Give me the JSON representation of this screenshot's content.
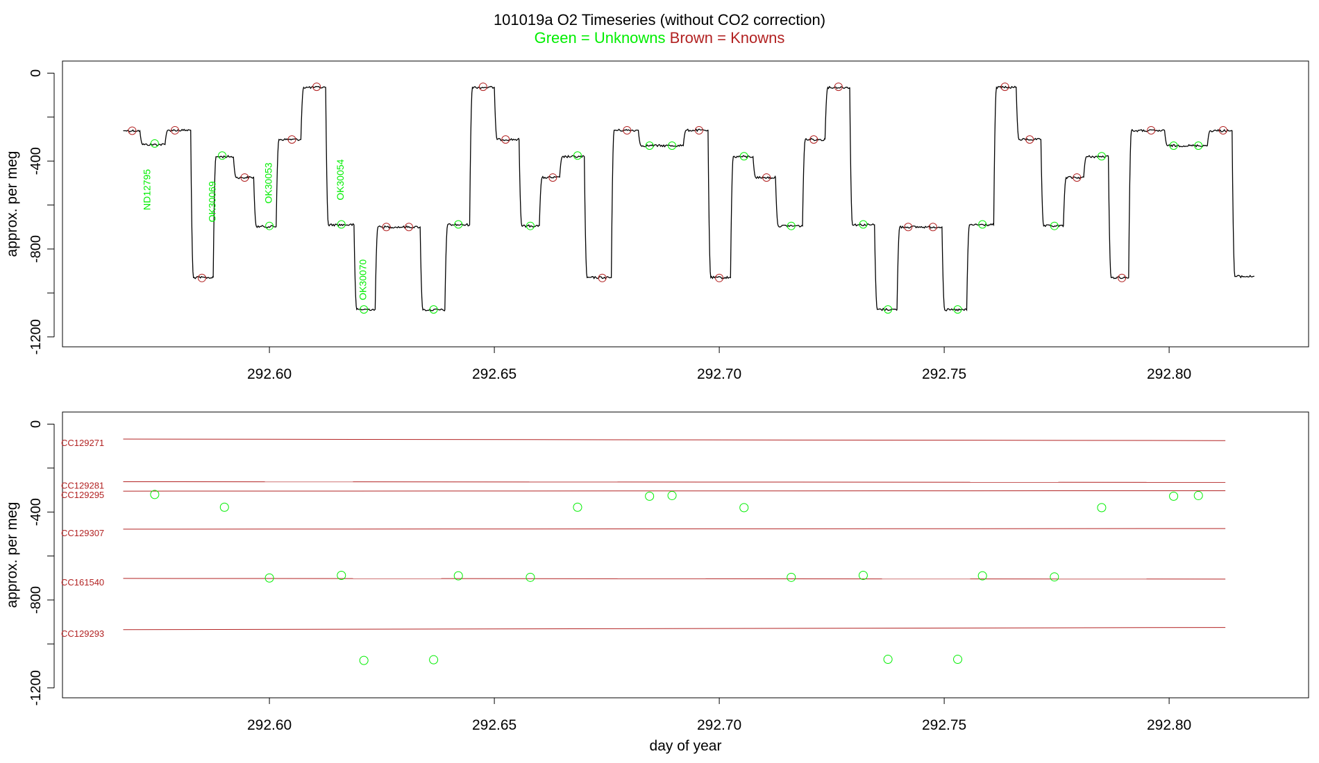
{
  "title": "101019a   O2 Timeseries (without CO2 correction)",
  "subtitle_unknowns": "Green = Unknowns",
  "subtitle_knowns": "Brown = Knowns",
  "colors": {
    "unknowns": "#00ee00",
    "knowns": "#b22222",
    "trace": "#000000",
    "ref_lines": "#b22222",
    "axis": "#000000"
  },
  "chart_data": [
    {
      "type": "line",
      "panel": "top",
      "xlabel": "",
      "ylabel": "approx. per meg",
      "xlim": [
        292.554,
        292.831
      ],
      "ylim": [
        -1245,
        55
      ],
      "xticks": [
        292.6,
        292.65,
        292.7,
        292.75,
        292.8
      ],
      "xtick_labels": [
        "292.60",
        "292.65",
        "292.70",
        "292.75",
        "292.80"
      ],
      "yticks": [
        0,
        -400,
        -800,
        -1200
      ],
      "ytick_labels": [
        "0",
        "-400",
        "-800",
        "-1200"
      ],
      "trace_segments": [
        {
          "x0": 292.5675,
          "x1": 292.5712,
          "y": -262
        },
        {
          "x0": 292.5712,
          "x1": 292.5768,
          "y": -325
        },
        {
          "x0": 292.5768,
          "x1": 292.5825,
          "y": -260
        },
        {
          "x0": 292.5825,
          "x1": 292.5875,
          "y": -930
        },
        {
          "x0": 292.5875,
          "x1": 292.592,
          "y": -380
        },
        {
          "x0": 292.592,
          "x1": 292.5965,
          "y": -475
        },
        {
          "x0": 292.5965,
          "x1": 292.6015,
          "y": -698
        },
        {
          "x0": 292.6015,
          "x1": 292.607,
          "y": -302
        },
        {
          "x0": 292.607,
          "x1": 292.6125,
          "y": -65
        },
        {
          "x0": 292.6125,
          "x1": 292.6188,
          "y": -690
        },
        {
          "x0": 292.6188,
          "x1": 292.6235,
          "y": -1075
        },
        {
          "x0": 292.6235,
          "x1": 292.6335,
          "y": -700
        },
        {
          "x0": 292.6335,
          "x1": 292.639,
          "y": -1077
        },
        {
          "x0": 292.639,
          "x1": 292.6445,
          "y": -690
        },
        {
          "x0": 292.6445,
          "x1": 292.65,
          "y": -65
        },
        {
          "x0": 292.65,
          "x1": 292.6555,
          "y": -302
        },
        {
          "x0": 292.6555,
          "x1": 292.66,
          "y": -695
        },
        {
          "x0": 292.66,
          "x1": 292.6645,
          "y": -475
        },
        {
          "x0": 292.6645,
          "x1": 292.67,
          "y": -380
        },
        {
          "x0": 292.67,
          "x1": 292.676,
          "y": -930
        },
        {
          "x0": 292.676,
          "x1": 292.682,
          "y": -260
        },
        {
          "x0": 292.682,
          "x1": 292.692,
          "y": -330
        },
        {
          "x0": 292.692,
          "x1": 292.6975,
          "y": -260
        },
        {
          "x0": 292.6975,
          "x1": 292.7025,
          "y": -930
        },
        {
          "x0": 292.7025,
          "x1": 292.7075,
          "y": -380
        },
        {
          "x0": 292.7075,
          "x1": 292.7125,
          "y": -475
        },
        {
          "x0": 292.7125,
          "x1": 292.7185,
          "y": -695
        },
        {
          "x0": 292.7185,
          "x1": 292.7235,
          "y": -302
        },
        {
          "x0": 292.7235,
          "x1": 292.729,
          "y": -65
        },
        {
          "x0": 292.729,
          "x1": 292.7345,
          "y": -690
        },
        {
          "x0": 292.7345,
          "x1": 292.7395,
          "y": -1075
        },
        {
          "x0": 292.7395,
          "x1": 292.7495,
          "y": -700
        },
        {
          "x0": 292.7495,
          "x1": 292.755,
          "y": -1077
        },
        {
          "x0": 292.755,
          "x1": 292.761,
          "y": -690
        },
        {
          "x0": 292.761,
          "x1": 292.766,
          "y": -65
        },
        {
          "x0": 292.766,
          "x1": 292.7715,
          "y": -302
        },
        {
          "x0": 292.7715,
          "x1": 292.7765,
          "y": -695
        },
        {
          "x0": 292.7765,
          "x1": 292.781,
          "y": -475
        },
        {
          "x0": 292.781,
          "x1": 292.7865,
          "y": -380
        },
        {
          "x0": 292.7865,
          "x1": 292.791,
          "y": -930
        },
        {
          "x0": 292.791,
          "x1": 292.799,
          "y": -262
        },
        {
          "x0": 292.799,
          "x1": 292.8085,
          "y": -330
        },
        {
          "x0": 292.8085,
          "x1": 292.814,
          "y": -262
        },
        {
          "x0": 292.814,
          "x1": 292.819,
          "y": -925
        }
      ],
      "unknown_points": [
        {
          "x": 292.5745,
          "y": -320
        },
        {
          "x": 292.5895,
          "y": -375
        },
        {
          "x": 292.6,
          "y": -695
        },
        {
          "x": 292.616,
          "y": -688
        },
        {
          "x": 292.621,
          "y": -1075
        },
        {
          "x": 292.6365,
          "y": -1075
        },
        {
          "x": 292.642,
          "y": -688
        },
        {
          "x": 292.658,
          "y": -695
        },
        {
          "x": 292.6685,
          "y": -375
        },
        {
          "x": 292.6845,
          "y": -330
        },
        {
          "x": 292.6895,
          "y": -330
        },
        {
          "x": 292.7055,
          "y": -378
        },
        {
          "x": 292.716,
          "y": -695
        },
        {
          "x": 292.732,
          "y": -688
        },
        {
          "x": 292.7375,
          "y": -1075
        },
        {
          "x": 292.753,
          "y": -1075
        },
        {
          "x": 292.7585,
          "y": -688
        },
        {
          "x": 292.7745,
          "y": -695
        },
        {
          "x": 292.785,
          "y": -378
        },
        {
          "x": 292.801,
          "y": -330
        },
        {
          "x": 292.8065,
          "y": -330
        }
      ],
      "known_points": [
        {
          "x": 292.5695,
          "y": -262
        },
        {
          "x": 292.579,
          "y": -260
        },
        {
          "x": 292.585,
          "y": -932
        },
        {
          "x": 292.5945,
          "y": -475
        },
        {
          "x": 292.605,
          "y": -302
        },
        {
          "x": 292.6105,
          "y": -62
        },
        {
          "x": 292.626,
          "y": -700
        },
        {
          "x": 292.631,
          "y": -700
        },
        {
          "x": 292.6475,
          "y": -62
        },
        {
          "x": 292.6525,
          "y": -302
        },
        {
          "x": 292.663,
          "y": -475
        },
        {
          "x": 292.674,
          "y": -932
        },
        {
          "x": 292.6795,
          "y": -260
        },
        {
          "x": 292.6955,
          "y": -260
        },
        {
          "x": 292.7,
          "y": -932
        },
        {
          "x": 292.7105,
          "y": -475
        },
        {
          "x": 292.721,
          "y": -302
        },
        {
          "x": 292.7265,
          "y": -62
        },
        {
          "x": 292.742,
          "y": -700
        },
        {
          "x": 292.7475,
          "y": -700
        },
        {
          "x": 292.7635,
          "y": -62
        },
        {
          "x": 292.769,
          "y": -302
        },
        {
          "x": 292.7795,
          "y": -475
        },
        {
          "x": 292.7895,
          "y": -932
        },
        {
          "x": 292.796,
          "y": -260
        },
        {
          "x": 292.812,
          "y": -260
        }
      ],
      "sample_labels": [
        {
          "text": "ND12795",
          "x": 292.5735,
          "y": -530
        },
        {
          "text": "OK30069",
          "x": 292.588,
          "y": -585
        },
        {
          "text": "OK30053",
          "x": 292.6005,
          "y": -500
        },
        {
          "text": "OK30054",
          "x": 292.6165,
          "y": -485
        },
        {
          "text": "OK30070",
          "x": 292.6215,
          "y": -940
        }
      ]
    },
    {
      "type": "scatter",
      "panel": "bottom",
      "xlabel": "day of year",
      "ylabel": "approx. per meg",
      "xlim": [
        292.554,
        292.831
      ],
      "ylim": [
        -1245,
        55
      ],
      "xticks": [
        292.6,
        292.65,
        292.7,
        292.75,
        292.8
      ],
      "xtick_labels": [
        "292.60",
        "292.65",
        "292.70",
        "292.75",
        "292.80"
      ],
      "yticks": [
        0,
        -400,
        -800,
        -1200
      ],
      "ytick_labels": [
        "0",
        "-400",
        "-800",
        "-1200"
      ],
      "reference_lines": [
        {
          "name": "CC129271",
          "y_start": -68,
          "y_end": -75
        },
        {
          "name": "CC129281",
          "y_start": -262,
          "y_end": -265
        },
        {
          "name": "CC129295",
          "y_start": -305,
          "y_end": -303
        },
        {
          "name": "CC129307",
          "y_start": -478,
          "y_end": -475
        },
        {
          "name": "CC161540",
          "y_start": -702,
          "y_end": -705
        },
        {
          "name": "CC129293",
          "y_start": -935,
          "y_end": -925
        }
      ],
      "ref_x_range": [
        292.5675,
        292.8125
      ],
      "unknown_points": [
        {
          "x": 292.5745,
          "y": -320
        },
        {
          "x": 292.59,
          "y": -378
        },
        {
          "x": 292.6,
          "y": -700
        },
        {
          "x": 292.616,
          "y": -688
        },
        {
          "x": 292.621,
          "y": -1075
        },
        {
          "x": 292.6365,
          "y": -1072
        },
        {
          "x": 292.642,
          "y": -690
        },
        {
          "x": 292.658,
          "y": -697
        },
        {
          "x": 292.6685,
          "y": -378
        },
        {
          "x": 292.6845,
          "y": -328
        },
        {
          "x": 292.6895,
          "y": -325
        },
        {
          "x": 292.7055,
          "y": -380
        },
        {
          "x": 292.716,
          "y": -697
        },
        {
          "x": 292.732,
          "y": -688
        },
        {
          "x": 292.7375,
          "y": -1070
        },
        {
          "x": 292.753,
          "y": -1070
        },
        {
          "x": 292.7585,
          "y": -690
        },
        {
          "x": 292.7745,
          "y": -695
        },
        {
          "x": 292.785,
          "y": -380
        },
        {
          "x": 292.801,
          "y": -328
        },
        {
          "x": 292.8065,
          "y": -325
        }
      ]
    }
  ]
}
